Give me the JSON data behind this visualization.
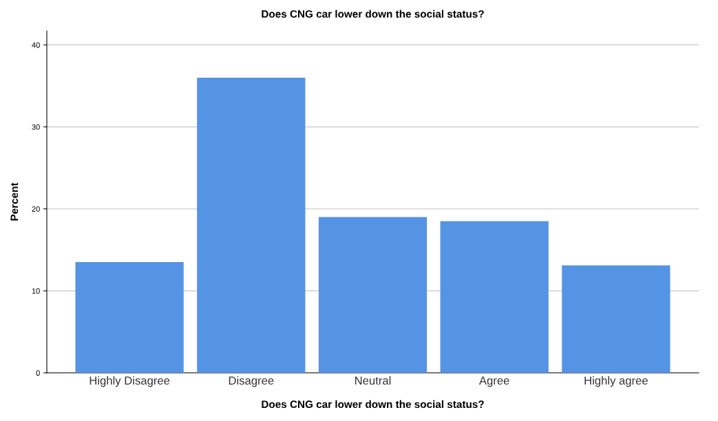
{
  "chart_data": {
    "type": "bar",
    "title": "Does CNG car lower down the social status?",
    "xlabel": "Does CNG car lower down the social status?",
    "ylabel": "Percent",
    "categories": [
      "Highly Disagree",
      "Disagree",
      "Neutral",
      "Agree",
      "Highly agree"
    ],
    "values": [
      13.5,
      36,
      19,
      18.5,
      13.1
    ],
    "color": "#5593e4",
    "ylim": [
      0,
      41.7
    ],
    "yticks": [
      0,
      10,
      20,
      30,
      40
    ],
    "grid": "y"
  }
}
